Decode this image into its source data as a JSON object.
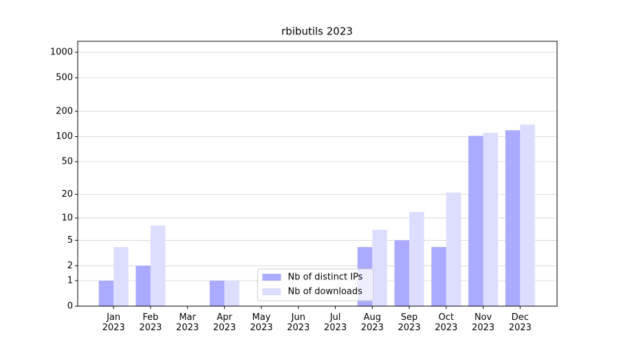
{
  "chart_data": {
    "type": "bar",
    "title": "rbibutils 2023",
    "categories": [
      "Jan 2023",
      "Feb 2023",
      "Mar 2023",
      "Apr 2023",
      "May 2023",
      "Jun 2023",
      "Jul 2023",
      "Aug 2023",
      "Sep 2023",
      "Oct 2023",
      "Nov 2023",
      "Dec 2023"
    ],
    "series": [
      {
        "name": "Nb of distinct IPs",
        "color": "#aaaaff",
        "values": [
          1,
          2,
          0,
          1,
          0,
          0,
          0,
          4,
          5,
          4,
          102,
          119
        ]
      },
      {
        "name": "Nb of downloads",
        "color": "#ddddff",
        "values": [
          4,
          8,
          0,
          1,
          0,
          0,
          0,
          7,
          12,
          21,
          111,
          139
        ]
      }
    ],
    "y_scale": "log1p",
    "ylim": [
      0,
      1350
    ],
    "yticks": [
      0,
      1,
      2,
      5,
      10,
      20,
      50,
      100,
      200,
      500,
      1000
    ],
    "grid": true,
    "legend": "lower center"
  }
}
